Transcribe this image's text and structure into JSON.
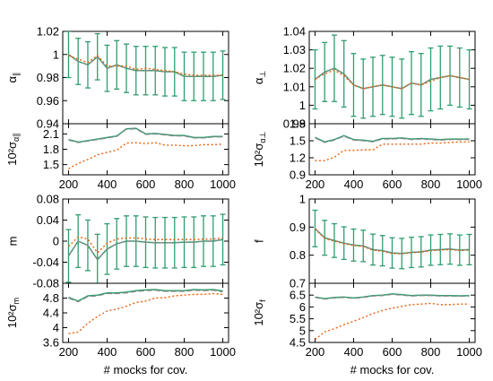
{
  "colors": {
    "green": "#2e9e6e",
    "orange": "#e8620f",
    "gray": "#888888"
  },
  "chart_data": [
    {
      "type": "line",
      "title": "",
      "xlabel": "",
      "ylabel": "α_∥",
      "ylim": [
        0.94,
        1.02
      ],
      "yticks": [
        "0.94",
        "0.96",
        "0.98",
        "1",
        "1.02"
      ],
      "xticks": [
        "200",
        "400",
        "600",
        "800",
        "1000"
      ],
      "xlim": [
        170,
        1030
      ],
      "show_xticklabels": false,
      "x": [
        200,
        250,
        300,
        350,
        400,
        450,
        500,
        550,
        600,
        650,
        700,
        750,
        800,
        850,
        900,
        950,
        1000
      ],
      "series": [
        {
          "style": "green",
          "values": [
            1.0,
            0.994,
            0.991,
            0.998,
            0.988,
            0.991,
            0.988,
            0.986,
            0.986,
            0.986,
            0.985,
            0.985,
            0.981,
            0.981,
            0.981,
            0.981,
            0.982
          ],
          "errors": [
            0.02,
            0.02,
            0.02,
            0.02,
            0.02,
            0.021,
            0.021,
            0.021,
            0.021,
            0.021,
            0.021,
            0.021,
            0.021,
            0.021,
            0.021,
            0.021,
            0.021
          ]
        },
        {
          "style": "gray",
          "values": [
            1.0,
            0.994,
            0.991,
            0.998,
            0.988,
            0.991,
            0.988,
            0.986,
            0.986,
            0.986,
            0.985,
            0.985,
            0.981,
            0.981,
            0.981,
            0.981,
            0.982
          ]
        },
        {
          "style": "orange-dotted",
          "values": [
            0.999,
            0.996,
            0.993,
            0.999,
            0.99,
            0.99,
            0.99,
            0.987,
            0.988,
            0.987,
            0.986,
            0.985,
            0.983,
            0.982,
            0.982,
            0.982,
            0.982
          ]
        }
      ]
    },
    {
      "type": "line",
      "title": "",
      "xlabel": "",
      "ylabel": "10²σ_α∥",
      "ylim": [
        1.3,
        2.3
      ],
      "yticks": [
        "1.5",
        "1.8",
        "2.1"
      ],
      "xticks": [
        "200",
        "400",
        "600",
        "800",
        "1000"
      ],
      "xlim": [
        170,
        1030
      ],
      "show_xticklabels": true,
      "x": [
        200,
        250,
        300,
        350,
        400,
        450,
        500,
        550,
        600,
        650,
        700,
        750,
        800,
        850,
        900,
        950,
        1000
      ],
      "series": [
        {
          "style": "green",
          "values": [
            1.99,
            1.94,
            1.97,
            2.0,
            2.03,
            2.06,
            2.2,
            2.21,
            2.1,
            2.11,
            2.09,
            2.07,
            2.07,
            2.03,
            2.03,
            2.05,
            2.05
          ]
        },
        {
          "style": "gray",
          "values": [
            1.98,
            1.93,
            1.96,
            1.99,
            2.02,
            2.05,
            2.19,
            2.2,
            2.09,
            2.1,
            2.08,
            2.06,
            2.06,
            2.02,
            2.02,
            2.04,
            2.04
          ]
        },
        {
          "style": "orange-dotted",
          "values": [
            1.42,
            1.52,
            1.6,
            1.69,
            1.74,
            1.78,
            1.92,
            1.93,
            1.91,
            1.93,
            1.88,
            1.88,
            1.87,
            1.87,
            1.89,
            1.89,
            1.9
          ]
        }
      ]
    },
    {
      "type": "line",
      "title": "",
      "xlabel": "",
      "ylabel": "α_⊥",
      "ylim": [
        0.99,
        1.04
      ],
      "yticks": [
        "0.99",
        "1",
        "1.01",
        "1.02",
        "1.03",
        "1.04"
      ],
      "xticks": [
        "200",
        "400",
        "600",
        "800",
        "1000"
      ],
      "xlim": [
        170,
        1030
      ],
      "show_xticklabels": false,
      "x": [
        200,
        250,
        300,
        350,
        400,
        450,
        500,
        550,
        600,
        650,
        700,
        750,
        800,
        850,
        900,
        950,
        1000
      ],
      "series": [
        {
          "style": "green",
          "values": [
            1.014,
            1.018,
            1.02,
            1.017,
            1.011,
            1.009,
            1.01,
            1.011,
            1.01,
            1.009,
            1.012,
            1.011,
            1.014,
            1.015,
            1.016,
            1.015,
            1.014
          ],
          "errors": [
            0.016,
            0.016,
            0.018,
            0.018,
            0.017,
            0.016,
            0.016,
            0.016,
            0.016,
            0.016,
            0.017,
            0.017,
            0.017,
            0.017,
            0.016,
            0.016,
            0.016
          ]
        },
        {
          "style": "gray",
          "values": [
            1.014,
            1.018,
            1.02,
            1.017,
            1.011,
            1.009,
            1.01,
            1.011,
            1.01,
            1.009,
            1.012,
            1.011,
            1.014,
            1.015,
            1.016,
            1.015,
            1.014
          ]
        },
        {
          "style": "orange-dotted",
          "values": [
            1.014,
            1.017,
            1.019,
            1.016,
            1.011,
            1.009,
            1.01,
            1.011,
            1.01,
            1.009,
            1.012,
            1.011,
            1.013,
            1.015,
            1.016,
            1.015,
            1.014
          ]
        }
      ]
    },
    {
      "type": "line",
      "title": "",
      "xlabel": "",
      "ylabel": "10²σ_α⊥",
      "ylim": [
        0.9,
        1.8
      ],
      "yticks": [
        "0.9",
        "1.2",
        "1.5",
        "1.8"
      ],
      "xticks": [
        "200",
        "400",
        "600",
        "800",
        "1000"
      ],
      "xlim": [
        170,
        1030
      ],
      "show_xticklabels": true,
      "x": [
        200,
        250,
        300,
        350,
        400,
        450,
        500,
        550,
        600,
        650,
        700,
        750,
        800,
        850,
        900,
        950,
        1000
      ],
      "series": [
        {
          "style": "green",
          "values": [
            1.56,
            1.48,
            1.52,
            1.59,
            1.52,
            1.51,
            1.49,
            1.54,
            1.54,
            1.55,
            1.53,
            1.54,
            1.53,
            1.52,
            1.53,
            1.53,
            1.53
          ]
        },
        {
          "style": "gray",
          "values": [
            1.55,
            1.47,
            1.51,
            1.58,
            1.51,
            1.5,
            1.48,
            1.53,
            1.53,
            1.54,
            1.52,
            1.53,
            1.52,
            1.51,
            1.52,
            1.52,
            1.52
          ]
        },
        {
          "style": "orange-dotted",
          "values": [
            1.15,
            1.15,
            1.21,
            1.33,
            1.33,
            1.34,
            1.34,
            1.44,
            1.44,
            1.44,
            1.44,
            1.44,
            1.46,
            1.46,
            1.47,
            1.48,
            1.48
          ]
        }
      ]
    },
    {
      "type": "line",
      "title": "",
      "xlabel": "",
      "ylabel": "m",
      "ylim": [
        -0.08,
        0.08
      ],
      "yticks": [
        "-0.08",
        "-0.04",
        "0",
        "0.04",
        "0.08"
      ],
      "xticks": [
        "200",
        "400",
        "600",
        "800",
        "1000"
      ],
      "xlim": [
        170,
        1030
      ],
      "show_xticklabels": false,
      "x": [
        200,
        250,
        300,
        350,
        400,
        450,
        500,
        550,
        600,
        650,
        700,
        750,
        800,
        850,
        900,
        950,
        1000
      ],
      "series": [
        {
          "style": "green",
          "values": [
            -0.028,
            0.0,
            -0.008,
            -0.035,
            -0.015,
            -0.005,
            0.0,
            0.0,
            -0.002,
            -0.003,
            -0.003,
            -0.003,
            -0.002,
            -0.002,
            0.0,
            0.0,
            0.003
          ],
          "errors": [
            0.05,
            0.05,
            0.048,
            0.048,
            0.048,
            0.048,
            0.048,
            0.048,
            0.048,
            0.048,
            0.048,
            0.048,
            0.048,
            0.048,
            0.048,
            0.048,
            0.048
          ]
        },
        {
          "style": "gray",
          "values": [
            -0.028,
            0.0,
            -0.008,
            -0.035,
            -0.015,
            -0.005,
            0.0,
            0.0,
            -0.002,
            -0.003,
            -0.003,
            -0.003,
            -0.002,
            -0.002,
            0.0,
            0.0,
            0.003
          ]
        },
        {
          "style": "orange-dotted",
          "values": [
            -0.01,
            0.008,
            0.004,
            -0.022,
            -0.004,
            0.004,
            0.006,
            0.006,
            0.004,
            0.003,
            0.003,
            0.003,
            0.003,
            0.003,
            0.004,
            0.004,
            0.006
          ]
        }
      ]
    },
    {
      "type": "line",
      "title": "",
      "xlabel": "# mocks for cov.",
      "ylabel": "10²σ_m",
      "ylim": [
        3.6,
        5.2
      ],
      "yticks": [
        "3.6",
        "4",
        "4.4",
        "4.8"
      ],
      "xticks": [
        "200",
        "400",
        "600",
        "800",
        "1000"
      ],
      "xlim": [
        170,
        1030
      ],
      "show_xticklabels": true,
      "x": [
        200,
        250,
        300,
        350,
        400,
        450,
        500,
        550,
        600,
        650,
        700,
        750,
        800,
        850,
        900,
        950,
        1000
      ],
      "series": [
        {
          "style": "green",
          "values": [
            4.82,
            4.72,
            4.86,
            4.88,
            4.94,
            4.94,
            4.96,
            5.0,
            5.02,
            5.03,
            5.0,
            5.0,
            5.0,
            5.03,
            5.02,
            5.03,
            4.99
          ]
        },
        {
          "style": "gray",
          "values": [
            4.8,
            4.7,
            4.84,
            4.86,
            4.92,
            4.92,
            4.94,
            4.98,
            5.0,
            5.01,
            4.98,
            4.98,
            4.98,
            5.01,
            5.0,
            5.01,
            4.97
          ]
        },
        {
          "style": "orange-dotted",
          "values": [
            3.84,
            3.88,
            4.12,
            4.3,
            4.45,
            4.5,
            4.58,
            4.68,
            4.72,
            4.8,
            4.81,
            4.86,
            4.88,
            4.9,
            4.9,
            4.92,
            4.9
          ]
        }
      ]
    },
    {
      "type": "line",
      "title": "",
      "xlabel": "",
      "ylabel": "f",
      "ylim": [
        0.7,
        1.0
      ],
      "yticks": [
        "0.7",
        "0.8",
        "0.9",
        "1"
      ],
      "xticks": [
        "200",
        "400",
        "600",
        "800",
        "1000"
      ],
      "xlim": [
        170,
        1030
      ],
      "show_xticklabels": false,
      "x": [
        200,
        250,
        300,
        350,
        400,
        450,
        500,
        550,
        600,
        650,
        700,
        750,
        800,
        850,
        900,
        950,
        1000
      ],
      "series": [
        {
          "style": "green",
          "values": [
            0.895,
            0.862,
            0.852,
            0.843,
            0.836,
            0.833,
            0.82,
            0.816,
            0.808,
            0.806,
            0.81,
            0.812,
            0.818,
            0.82,
            0.822,
            0.818,
            0.82
          ],
          "errors": [
            0.065,
            0.062,
            0.06,
            0.058,
            0.057,
            0.056,
            0.055,
            0.054,
            0.054,
            0.054,
            0.054,
            0.054,
            0.054,
            0.054,
            0.054,
            0.054,
            0.054
          ]
        },
        {
          "style": "gray",
          "values": [
            0.895,
            0.862,
            0.852,
            0.843,
            0.836,
            0.833,
            0.82,
            0.816,
            0.808,
            0.806,
            0.81,
            0.812,
            0.818,
            0.82,
            0.822,
            0.818,
            0.82
          ]
        },
        {
          "style": "orange-dotted",
          "values": [
            0.893,
            0.86,
            0.85,
            0.841,
            0.835,
            0.831,
            0.818,
            0.814,
            0.806,
            0.805,
            0.809,
            0.811,
            0.816,
            0.818,
            0.82,
            0.817,
            0.818
          ]
        }
      ]
    },
    {
      "type": "line",
      "title": "",
      "xlabel": "# mocks for cov.",
      "ylabel": "10²σ_f",
      "ylim": [
        4.5,
        7.0
      ],
      "yticks": [
        "4.5",
        "5",
        "5.5",
        "6",
        "6.5"
      ],
      "xticks": [
        "200",
        "400",
        "600",
        "800",
        "1000"
      ],
      "xlim": [
        170,
        1030
      ],
      "show_xticklabels": true,
      "x": [
        200,
        250,
        300,
        350,
        400,
        450,
        500,
        550,
        600,
        650,
        700,
        750,
        800,
        850,
        900,
        950,
        1000
      ],
      "series": [
        {
          "style": "green",
          "values": [
            6.42,
            6.35,
            6.4,
            6.42,
            6.38,
            6.42,
            6.48,
            6.5,
            6.55,
            6.52,
            6.48,
            6.5,
            6.5,
            6.48,
            6.48,
            6.47,
            6.48
          ]
        },
        {
          "style": "gray",
          "values": [
            6.4,
            6.33,
            6.38,
            6.4,
            6.36,
            6.4,
            6.46,
            6.48,
            6.53,
            6.5,
            6.46,
            6.48,
            6.48,
            6.46,
            6.46,
            6.45,
            6.46
          ]
        },
        {
          "style": "orange-dotted",
          "values": [
            4.62,
            4.95,
            5.08,
            5.25,
            5.4,
            5.55,
            5.72,
            5.85,
            5.95,
            6.02,
            6.1,
            6.12,
            6.15,
            6.1,
            6.1,
            6.12,
            6.12
          ]
        }
      ]
    }
  ]
}
